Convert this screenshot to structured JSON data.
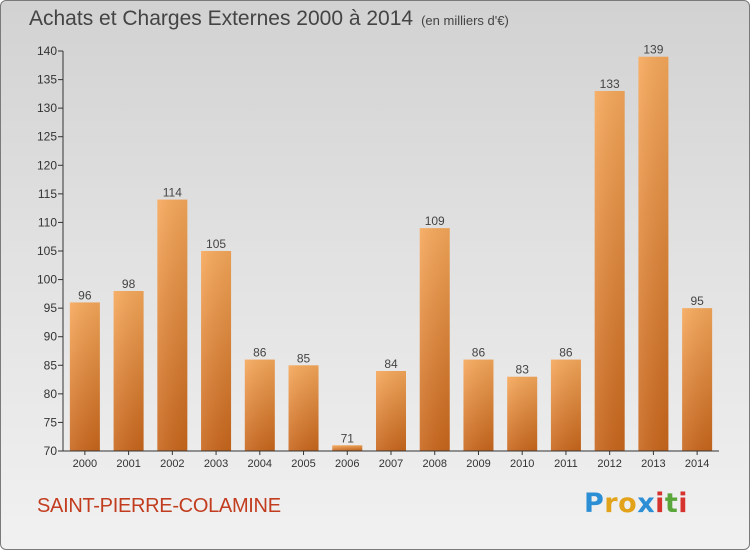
{
  "title": {
    "main": "Achats et Charges Externes 2000 à 2014",
    "unit": "(en milliers d'€)"
  },
  "commune": "SAINT-PIERRE-COLAMINE",
  "logo": {
    "letters": [
      "P",
      "r",
      "o",
      "x",
      "i",
      "t",
      "i"
    ],
    "colors": [
      "#2c8fd6",
      "#e2a31b",
      "#e2a31b",
      "#2c8fd6",
      "#d6322e",
      "#5aa63a",
      "#d6322e"
    ]
  },
  "chart_data": {
    "type": "bar",
    "categories": [
      "2000",
      "2001",
      "2002",
      "2003",
      "2004",
      "2005",
      "2006",
      "2007",
      "2008",
      "2009",
      "2010",
      "2011",
      "2012",
      "2013",
      "2014"
    ],
    "values": [
      96,
      98,
      114,
      105,
      86,
      85,
      71,
      84,
      109,
      86,
      83,
      86,
      133,
      139,
      95
    ],
    "ylim": [
      70,
      140
    ],
    "yticks": [
      70,
      75,
      80,
      85,
      90,
      95,
      100,
      105,
      110,
      115,
      120,
      125,
      130,
      135,
      140
    ],
    "grid": false,
    "colors": {
      "bar_light": "#f6a85a",
      "bar_dark": "#c8661c",
      "axis": "#333333",
      "text": "#444444"
    }
  }
}
